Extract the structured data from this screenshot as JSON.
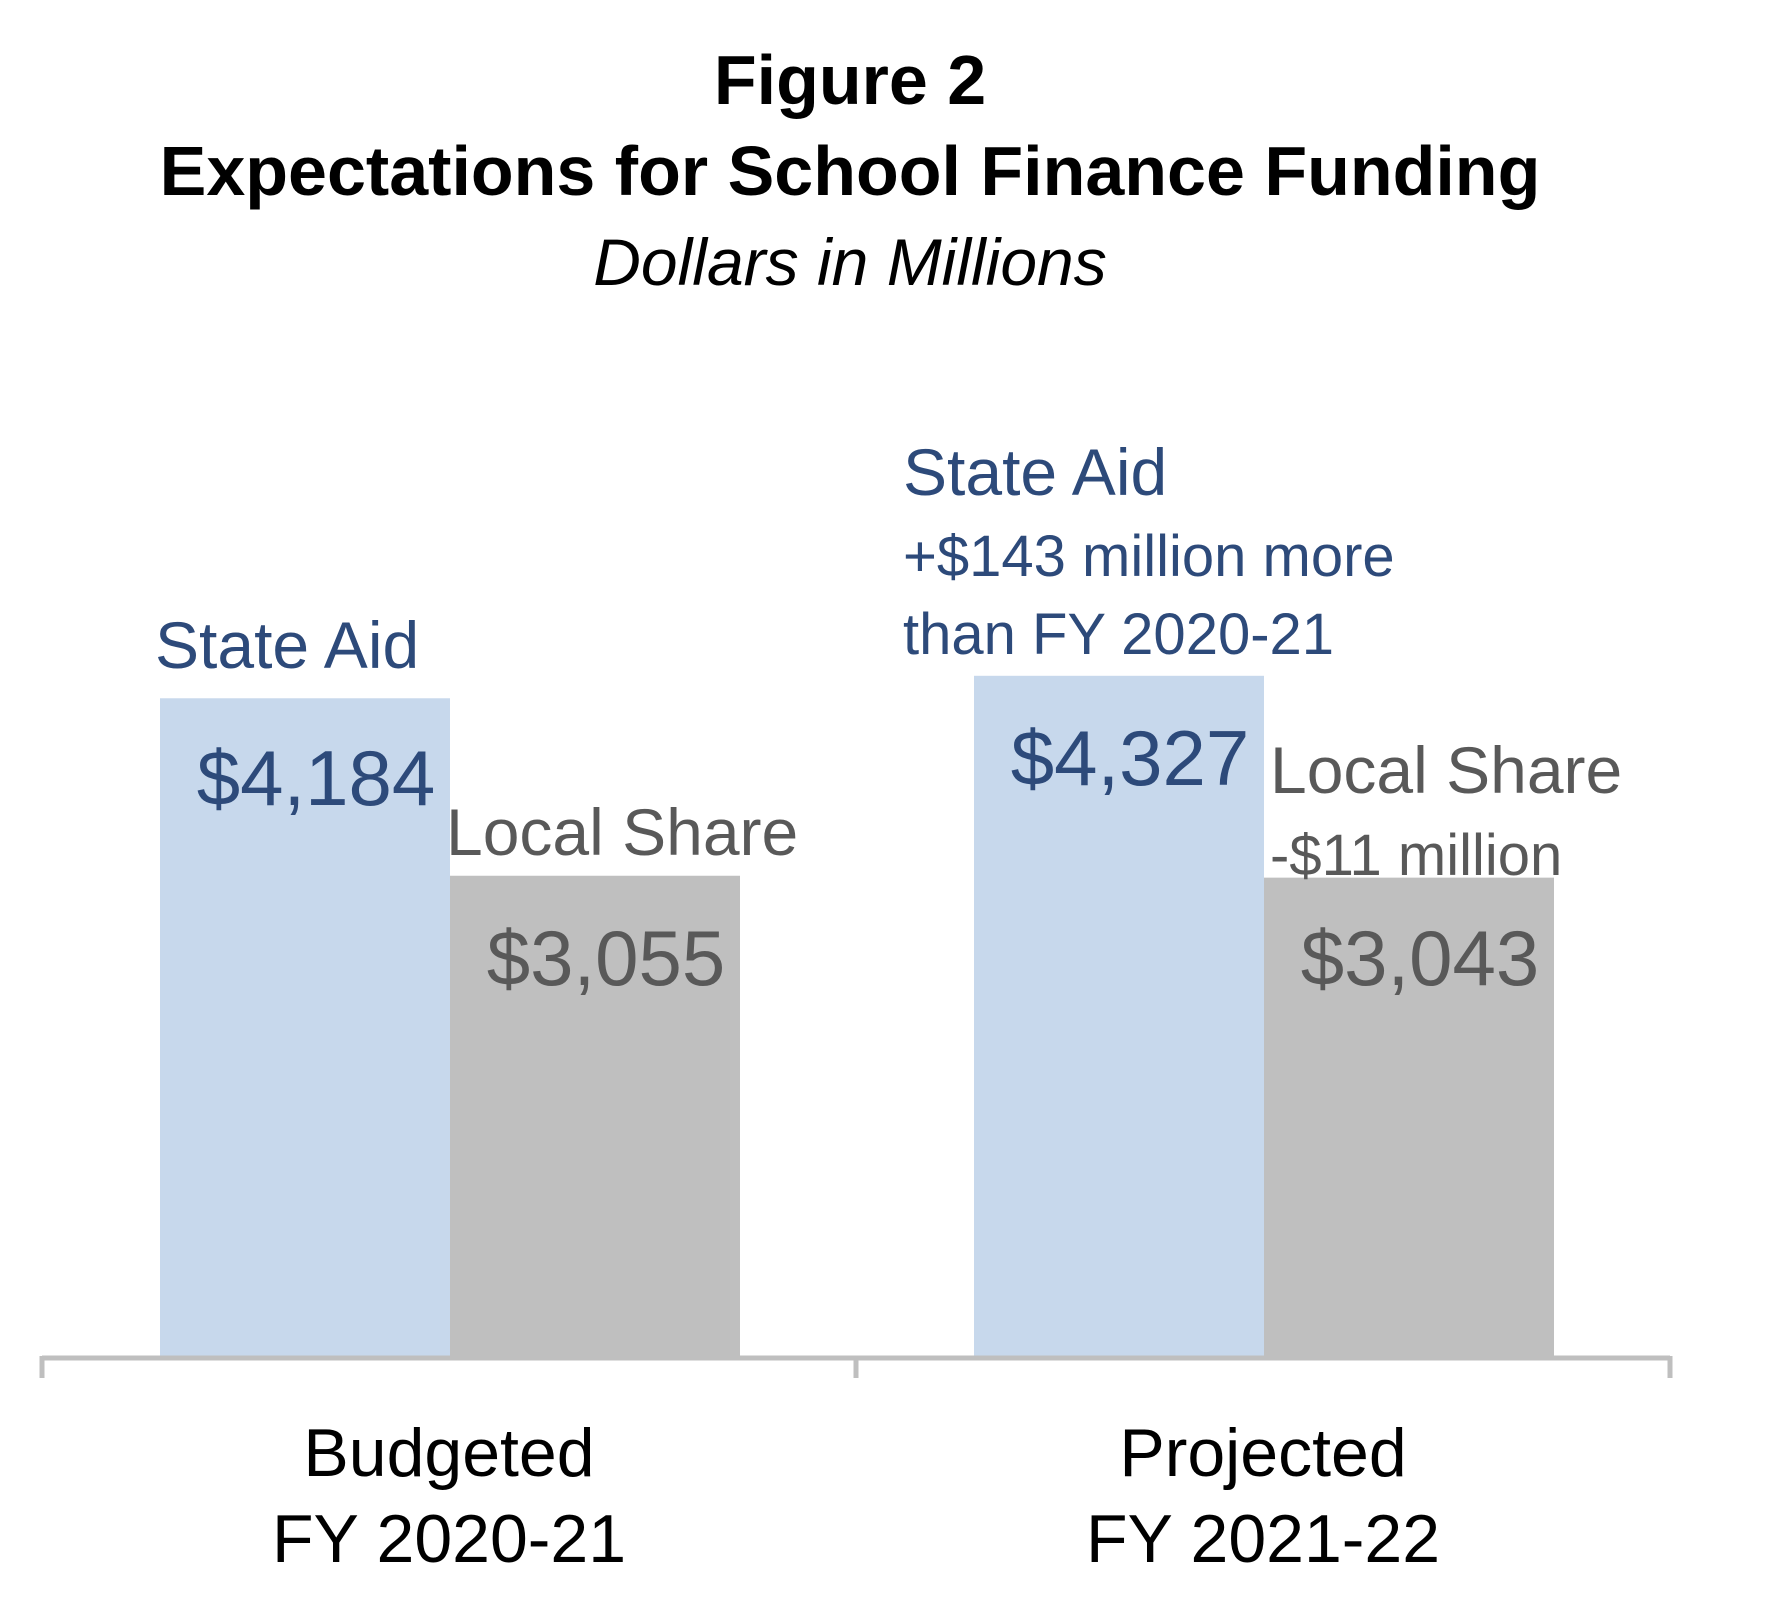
{
  "chart_data": {
    "type": "bar",
    "title": "Figure 2",
    "subtitle": "Expectations for School Finance Funding",
    "units_note": "Dollars in Millions",
    "categories": [
      {
        "line1": "Budgeted",
        "line2": "FY 2020-21"
      },
      {
        "line1": "Projected",
        "line2": "FY 2021-22"
      }
    ],
    "series": [
      {
        "key": "state",
        "color": "#c7d8ec",
        "text_color": "#2d4a7a",
        "values": [
          4184,
          4327
        ],
        "value_labels": [
          "$4,184",
          "$4,327"
        ]
      },
      {
        "key": "local",
        "color": "#bfbfbf",
        "text_color": "#595959",
        "values": [
          3055,
          3043
        ],
        "value_labels": [
          "$3,055",
          "$3,043"
        ]
      }
    ],
    "annotations": {
      "budgeted_state": [
        "State Aid"
      ],
      "budgeted_local": [
        "Local Share"
      ],
      "projected_state": [
        "State Aid",
        "+$143 million more",
        "than FY 2020-21"
      ],
      "projected_local": [
        "Local Share",
        "-$11 million"
      ]
    },
    "ylim": [
      0,
      5000
    ]
  }
}
